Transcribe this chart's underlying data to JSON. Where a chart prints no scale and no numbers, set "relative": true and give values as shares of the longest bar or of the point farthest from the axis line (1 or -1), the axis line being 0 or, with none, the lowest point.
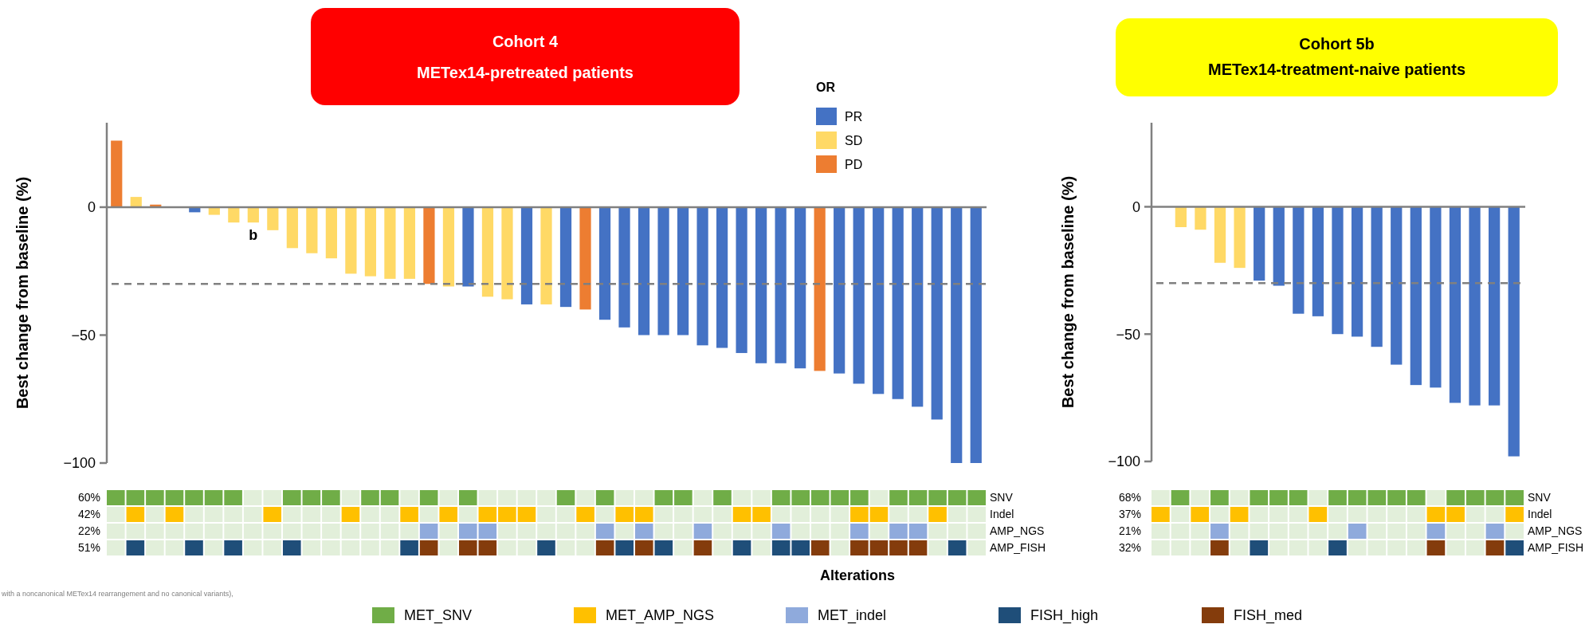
{
  "chart_data": [
    {
      "type": "bar",
      "title": "Cohort 4",
      "subtitle": "METex14-pretreated patients",
      "ylabel": "Best change from baseline (%)",
      "categories": [
        null,
        null,
        null,
        null,
        null,
        null,
        null,
        null,
        null,
        null,
        null,
        null,
        null,
        null,
        null,
        null,
        null,
        null,
        null,
        null,
        null,
        null,
        null,
        null,
        null,
        null,
        null,
        null,
        null,
        null,
        null,
        null,
        null,
        null,
        null,
        null,
        null,
        null,
        null,
        null,
        null,
        null,
        null,
        null,
        null
      ],
      "series": [
        {
          "name": "PR",
          "color": "#4472c4",
          "values": [
            null,
            null,
            null,
            null,
            -2,
            null,
            null,
            null,
            null,
            null,
            null,
            null,
            null,
            null,
            null,
            null,
            null,
            null,
            -31,
            null,
            null,
            -38,
            null,
            -39,
            null,
            -44,
            -47,
            -50,
            -50,
            -50,
            -54,
            -55,
            -57,
            -61,
            -61,
            -63,
            null,
            -65,
            -69,
            -73,
            -75,
            -78,
            -83,
            -100,
            -100
          ]
        },
        {
          "name": "SD",
          "color": "#ffd966",
          "values": [
            null,
            4,
            null,
            null,
            null,
            -3,
            -6,
            -6,
            -9,
            -16,
            -18,
            -20,
            -26,
            -27,
            -28,
            -28,
            null,
            -31,
            null,
            -35,
            -36,
            null,
            -38,
            null,
            null,
            null,
            null,
            null,
            null,
            null,
            null,
            null,
            null,
            null,
            null,
            null,
            null,
            null,
            null,
            null,
            null,
            null,
            null,
            null,
            null
          ],
          "value_labels": [
            null,
            null,
            null,
            null,
            null,
            null,
            null,
            "b",
            null,
            null,
            null,
            null,
            null,
            null,
            null,
            null,
            null,
            null,
            null,
            null,
            null,
            null,
            null,
            null,
            null,
            null,
            null,
            null,
            null,
            null,
            null,
            null,
            null,
            null,
            null,
            null,
            null,
            null,
            null,
            null,
            null,
            null,
            null,
            null,
            null
          ]
        },
        {
          "name": "PD",
          "color": "#ed7d31",
          "values": [
            26,
            null,
            1,
            null,
            null,
            null,
            null,
            null,
            null,
            null,
            null,
            null,
            null,
            null,
            null,
            null,
            -30,
            null,
            null,
            null,
            null,
            null,
            null,
            null,
            -40,
            null,
            null,
            null,
            null,
            null,
            null,
            null,
            null,
            null,
            null,
            null,
            -64,
            null,
            null,
            null,
            null,
            null,
            null,
            null,
            null
          ]
        }
      ],
      "ylim": [
        -100,
        33
      ],
      "yticks": [
        0,
        -50,
        -100
      ],
      "ref_lines": [
        {
          "axis": "y",
          "value": -30,
          "color": "#808080",
          "line_style": "dashed"
        }
      ],
      "legend": "top right",
      "legend_title": "OR"
    },
    {
      "type": "bar",
      "relative": true,
      "ylabel": "60%",
      "y2label": "SNV",
      "legend": "bottom",
      "legend_title": "Alterations",
      "categories": [
        null,
        null,
        null,
        null,
        null,
        null,
        null,
        null,
        null,
        null,
        null,
        null,
        null,
        null,
        null,
        null,
        null,
        null,
        null,
        null,
        null,
        null,
        null,
        null,
        null,
        null,
        null,
        null,
        null,
        null,
        null,
        null,
        null,
        null,
        null,
        null,
        null,
        null,
        null,
        null,
        null,
        null,
        null,
        null,
        null
      ],
      "series": [
        {
          "color": "#e2efda",
          "values": [
            null,
            null,
            null,
            null,
            null,
            null,
            null,
            1,
            1,
            null,
            null,
            null,
            1,
            null,
            null,
            1,
            null,
            1,
            null,
            1,
            1,
            1,
            1,
            null,
            1,
            null,
            1,
            1,
            null,
            null,
            1,
            null,
            1,
            1,
            null,
            null,
            null,
            null,
            null,
            1,
            null,
            null,
            null,
            null,
            null
          ]
        },
        {
          "name": "MET_SNV",
          "color": "#70ad47",
          "values": [
            1,
            1,
            1,
            1,
            1,
            1,
            1,
            null,
            null,
            1,
            1,
            1,
            null,
            1,
            1,
            null,
            1,
            null,
            1,
            null,
            null,
            null,
            null,
            1,
            null,
            1,
            null,
            null,
            1,
            1,
            null,
            1,
            null,
            null,
            1,
            1,
            1,
            1,
            1,
            null,
            1,
            1,
            1,
            1,
            1
          ]
        }
      ]
    },
    {
      "type": "bar",
      "relative": true,
      "ylabel": "42%",
      "y2label": "Indel",
      "legend": "bottom",
      "categories": [
        null,
        null,
        null,
        null,
        null,
        null,
        null,
        null,
        null,
        null,
        null,
        null,
        null,
        null,
        null,
        null,
        null,
        null,
        null,
        null,
        null,
        null,
        null,
        null,
        null,
        null,
        null,
        null,
        null,
        null,
        null,
        null,
        null,
        null,
        null,
        null,
        null,
        null,
        null,
        null,
        null,
        null,
        null,
        null,
        null
      ],
      "series": [
        {
          "color": "#e2efda",
          "values": [
            1,
            null,
            1,
            null,
            1,
            1,
            1,
            1,
            null,
            1,
            1,
            1,
            null,
            1,
            1,
            null,
            1,
            null,
            1,
            null,
            null,
            null,
            1,
            1,
            null,
            1,
            null,
            null,
            1,
            1,
            1,
            1,
            null,
            null,
            1,
            1,
            1,
            1,
            null,
            null,
            1,
            1,
            null,
            1,
            1
          ]
        },
        {
          "name": "MET_AMP_NGS",
          "color": "#ffc000",
          "values": [
            null,
            1,
            null,
            1,
            null,
            null,
            null,
            null,
            1,
            null,
            null,
            null,
            1,
            null,
            null,
            1,
            null,
            1,
            null,
            1,
            1,
            1,
            null,
            null,
            1,
            null,
            1,
            1,
            null,
            null,
            null,
            null,
            1,
            1,
            null,
            null,
            null,
            null,
            1,
            1,
            null,
            null,
            1,
            null,
            null
          ]
        }
      ]
    },
    {
      "type": "bar",
      "relative": true,
      "ylabel": "22%",
      "y2label": "AMP_NGS",
      "legend": "bottom",
      "categories": [
        null,
        null,
        null,
        null,
        null,
        null,
        null,
        null,
        null,
        null,
        null,
        null,
        null,
        null,
        null,
        null,
        null,
        null,
        null,
        null,
        null,
        null,
        null,
        null,
        null,
        null,
        null,
        null,
        null,
        null,
        null,
        null,
        null,
        null,
        null,
        null,
        null,
        null,
        null,
        null,
        null,
        null,
        null,
        null,
        null
      ],
      "series": [
        {
          "color": "#e2efda",
          "values": [
            1,
            1,
            1,
            1,
            1,
            1,
            1,
            1,
            1,
            1,
            1,
            1,
            1,
            1,
            1,
            1,
            null,
            1,
            null,
            null,
            1,
            1,
            1,
            1,
            1,
            null,
            1,
            null,
            1,
            1,
            null,
            1,
            1,
            1,
            null,
            1,
            1,
            1,
            null,
            1,
            null,
            null,
            1,
            1,
            1
          ]
        },
        {
          "name": "MET_indel",
          "color": "#8faadc",
          "values": [
            null,
            null,
            null,
            null,
            null,
            null,
            null,
            null,
            null,
            null,
            null,
            null,
            null,
            null,
            null,
            null,
            1,
            null,
            1,
            1,
            null,
            null,
            null,
            null,
            null,
            1,
            null,
            1,
            null,
            null,
            1,
            null,
            null,
            null,
            1,
            null,
            null,
            null,
            1,
            null,
            1,
            1,
            null,
            null,
            null
          ]
        }
      ]
    },
    {
      "type": "bar",
      "relative": true,
      "ylabel": "51%",
      "y2label": "AMP_FISH",
      "legend": "bottom",
      "categories": [
        null,
        null,
        null,
        null,
        null,
        null,
        null,
        null,
        null,
        null,
        null,
        null,
        null,
        null,
        null,
        null,
        null,
        null,
        null,
        null,
        null,
        null,
        null,
        null,
        null,
        null,
        null,
        null,
        null,
        null,
        null,
        null,
        null,
        null,
        null,
        null,
        null,
        null,
        null,
        null,
        null,
        null,
        null,
        null,
        null
      ],
      "series": [
        {
          "color": "#e2efda",
          "values": [
            1,
            null,
            1,
            1,
            null,
            1,
            null,
            1,
            1,
            null,
            1,
            1,
            1,
            1,
            1,
            null,
            null,
            1,
            null,
            null,
            1,
            1,
            null,
            1,
            1,
            null,
            null,
            null,
            null,
            1,
            null,
            1,
            null,
            1,
            null,
            null,
            null,
            1,
            null,
            null,
            null,
            null,
            1,
            null,
            1
          ]
        },
        {
          "name": "FISH_high",
          "color": "#1f4e79",
          "values": [
            null,
            1,
            null,
            null,
            1,
            null,
            1,
            null,
            null,
            1,
            null,
            null,
            null,
            null,
            null,
            1,
            null,
            null,
            null,
            null,
            null,
            null,
            1,
            null,
            null,
            null,
            1,
            null,
            1,
            null,
            null,
            null,
            1,
            null,
            1,
            1,
            null,
            null,
            null,
            null,
            null,
            null,
            null,
            1,
            null
          ]
        },
        {
          "name": "FISH_med",
          "color": "#843c0c",
          "values": [
            null,
            null,
            null,
            null,
            null,
            null,
            null,
            null,
            null,
            null,
            null,
            null,
            null,
            null,
            null,
            null,
            1,
            null,
            1,
            1,
            null,
            null,
            null,
            null,
            null,
            1,
            null,
            1,
            null,
            null,
            1,
            null,
            null,
            null,
            null,
            null,
            1,
            null,
            1,
            1,
            1,
            1,
            null,
            null,
            null
          ]
        }
      ],
      "annotations": [
        "with a noncanonical METex14 rearrangement and no canonical variants),"
      ]
    },
    {
      "type": "bar",
      "title": "Cohort 5b",
      "subtitle": "METex14-treatment-naive patients",
      "ylabel": "Best change from baseline (%)",
      "categories": [
        null,
        null,
        null,
        null,
        null,
        null,
        null,
        null,
        null,
        null,
        null,
        null,
        null,
        null,
        null,
        null,
        null,
        null,
        null
      ],
      "series": [
        {
          "color": "#4472c4",
          "values": [
            null,
            null,
            null,
            null,
            null,
            -29,
            -31,
            -42,
            -43,
            -50,
            -51,
            -55,
            -62,
            -70,
            -71,
            -77,
            -78,
            -78,
            -98
          ]
        },
        {
          "color": "#ffd966",
          "values": [
            null,
            -8,
            -9,
            -22,
            -24,
            null,
            null,
            null,
            null,
            null,
            null,
            null,
            null,
            null,
            null,
            null,
            null,
            null,
            null
          ]
        }
      ],
      "ylim": [
        -100,
        33
      ],
      "yticks": [
        0,
        -50,
        -100
      ],
      "ref_lines": [
        {
          "axis": "y",
          "value": -30,
          "color": "#808080",
          "line_style": "dashed"
        }
      ]
    },
    {
      "type": "bar",
      "relative": true,
      "ylabel": "68%",
      "y2label": "SNV",
      "categories": [
        null,
        null,
        null,
        null,
        null,
        null,
        null,
        null,
        null,
        null,
        null,
        null,
        null,
        null,
        null,
        null,
        null,
        null,
        null
      ],
      "series": [
        {
          "color": "#e2efda",
          "values": [
            1,
            null,
            1,
            null,
            1,
            null,
            null,
            null,
            1,
            null,
            null,
            null,
            null,
            null,
            1,
            null,
            null,
            null,
            null
          ]
        },
        {
          "color": "#70ad47",
          "values": [
            null,
            1,
            null,
            1,
            null,
            1,
            1,
            1,
            null,
            1,
            1,
            1,
            1,
            1,
            null,
            1,
            1,
            1,
            1
          ]
        }
      ]
    },
    {
      "type": "bar",
      "relative": true,
      "ylabel": "37%",
      "y2label": "Indel",
      "categories": [
        null,
        null,
        null,
        null,
        null,
        null,
        null,
        null,
        null,
        null,
        null,
        null,
        null,
        null,
        null,
        null,
        null,
        null,
        null
      ],
      "series": [
        {
          "color": "#e2efda",
          "values": [
            null,
            1,
            null,
            1,
            null,
            1,
            1,
            1,
            null,
            1,
            1,
            1,
            1,
            1,
            null,
            null,
            1,
            1,
            null
          ]
        },
        {
          "color": "#ffc000",
          "values": [
            1,
            null,
            1,
            null,
            1,
            null,
            null,
            null,
            1,
            null,
            null,
            null,
            null,
            null,
            1,
            1,
            null,
            null,
            1
          ]
        }
      ]
    },
    {
      "type": "bar",
      "relative": true,
      "ylabel": "21%",
      "y2label": "AMP_NGS",
      "categories": [
        null,
        null,
        null,
        null,
        null,
        null,
        null,
        null,
        null,
        null,
        null,
        null,
        null,
        null,
        null,
        null,
        null,
        null,
        null
      ],
      "series": [
        {
          "color": "#e2efda",
          "values": [
            1,
            1,
            1,
            null,
            1,
            1,
            1,
            1,
            1,
            1,
            null,
            1,
            1,
            1,
            null,
            1,
            1,
            null,
            1
          ]
        },
        {
          "color": "#8faadc",
          "values": [
            null,
            null,
            null,
            1,
            null,
            null,
            null,
            null,
            null,
            null,
            1,
            null,
            null,
            null,
            1,
            null,
            null,
            1,
            null
          ]
        }
      ]
    },
    {
      "type": "bar",
      "relative": true,
      "ylabel": "32%",
      "y2label": "AMP_FISH",
      "categories": [
        null,
        null,
        null,
        null,
        null,
        null,
        null,
        null,
        null,
        null,
        null,
        null,
        null,
        null,
        null,
        null,
        null,
        null,
        null
      ],
      "series": [
        {
          "color": "#e2efda",
          "values": [
            1,
            1,
            1,
            null,
            1,
            null,
            1,
            1,
            1,
            null,
            1,
            1,
            1,
            1,
            null,
            1,
            1,
            null,
            null
          ]
        },
        {
          "color": "#1f4e79",
          "values": [
            null,
            null,
            null,
            null,
            null,
            1,
            null,
            null,
            null,
            1,
            null,
            null,
            null,
            null,
            null,
            null,
            null,
            null,
            1
          ]
        },
        {
          "color": "#843c0c",
          "values": [
            null,
            null,
            null,
            1,
            null,
            null,
            null,
            null,
            null,
            null,
            null,
            null,
            null,
            null,
            1,
            null,
            null,
            1,
            null
          ]
        }
      ]
    }
  ]
}
